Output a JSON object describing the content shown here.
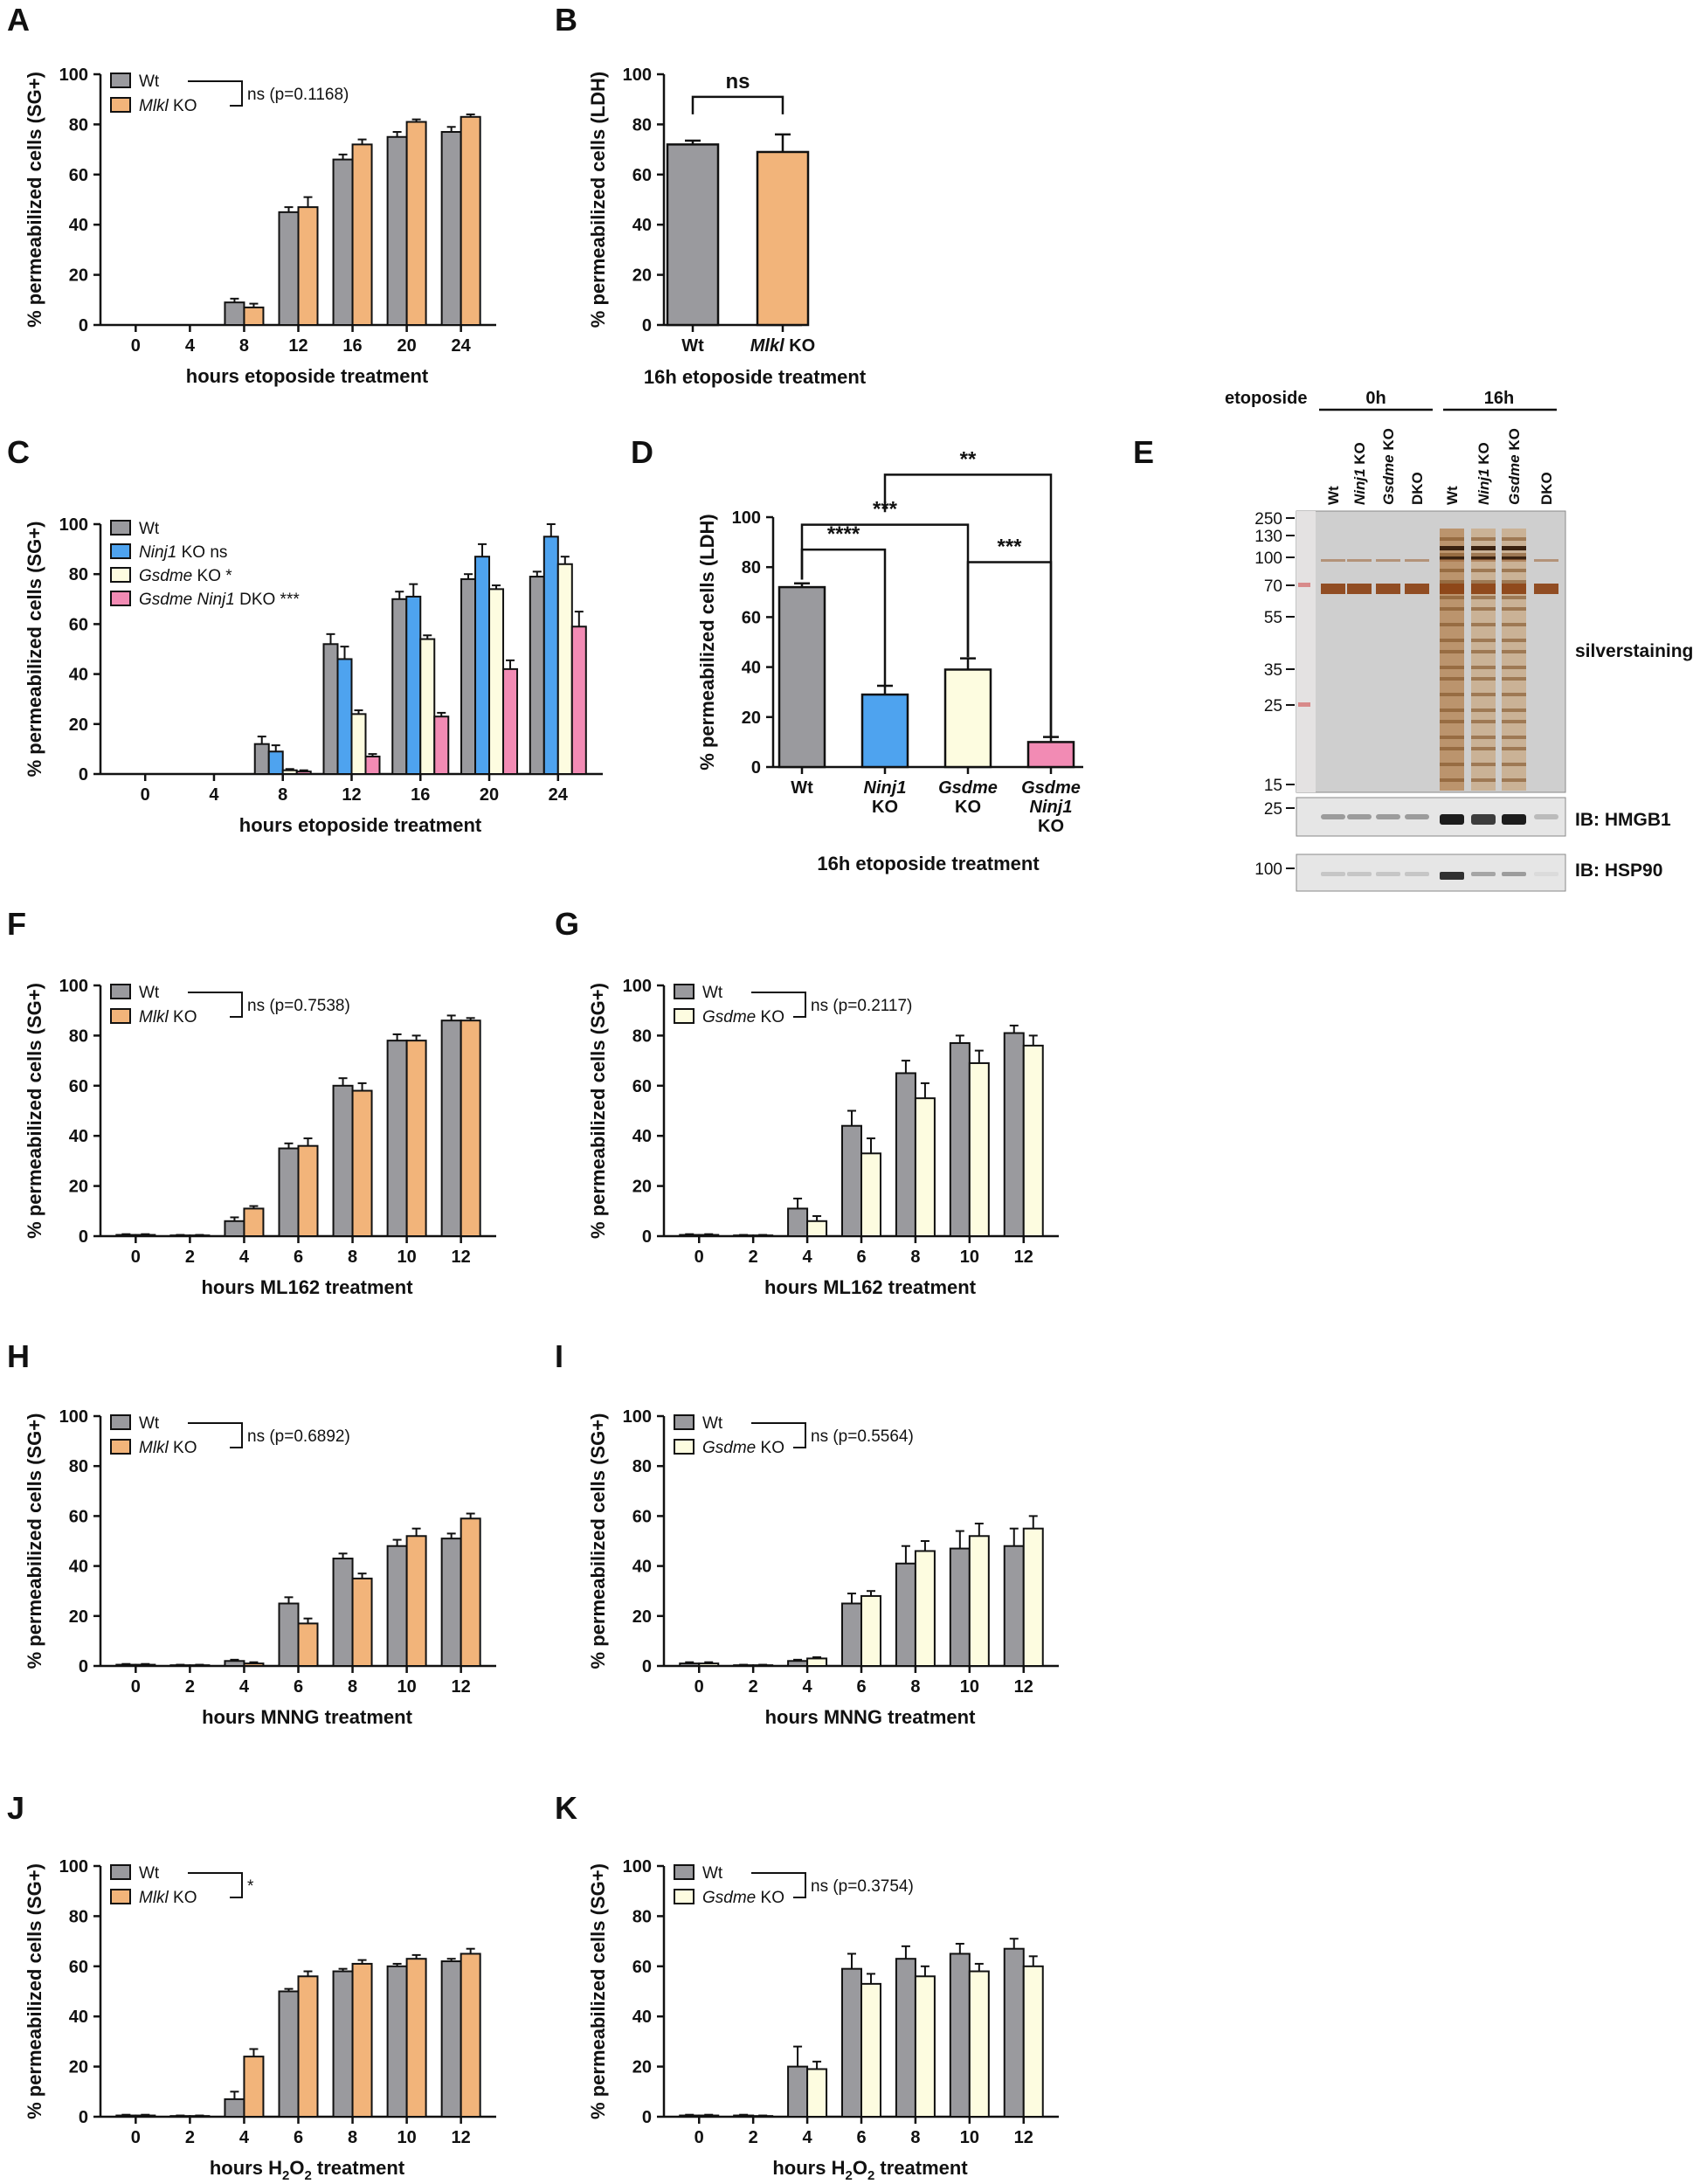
{
  "colors": {
    "wt": "#9a9a9e",
    "mlkl": "#f2b47a",
    "ninj1": "#4ea3ef",
    "gsdme": "#fdfce0",
    "dko": "#f28bb4"
  },
  "chart_data": [
    {
      "panel": "A",
      "type": "bar",
      "ylabel": "% permeabilized cells (SG+)",
      "xlabel": "hours etoposide treatment",
      "ylim": [
        0,
        100
      ],
      "yticks": [
        0,
        20,
        40,
        60,
        80,
        100
      ],
      "categories": [
        "0",
        "4",
        "8",
        "12",
        "16",
        "20",
        "24"
      ],
      "series": [
        {
          "name": "Wt",
          "color": "wt",
          "values": [
            0,
            0,
            9,
            45,
            66,
            75,
            77
          ],
          "err": [
            0,
            0,
            1.5,
            2,
            2,
            2,
            2
          ]
        },
        {
          "name": "Mlkl KO",
          "color": "mlkl",
          "values": [
            0,
            0,
            7,
            47,
            72,
            81,
            83
          ],
          "err": [
            0,
            0,
            1.5,
            4,
            2,
            1,
            1
          ]
        }
      ],
      "legend_bracket_text": "ns (p=0.1168)"
    },
    {
      "panel": "B",
      "type": "bar",
      "ylabel": "% permeabilized cells (LDH)",
      "xlabel": "16h etoposide treatment",
      "ylim": [
        0,
        100
      ],
      "yticks": [
        0,
        20,
        40,
        60,
        80,
        100
      ],
      "categories": [
        "Wt",
        "Mlkl KO"
      ],
      "series": [
        {
          "values": [
            72,
            69
          ],
          "err": [
            1.5,
            7
          ],
          "colors": [
            "wt",
            "mlkl"
          ]
        }
      ],
      "significance": [
        {
          "from": 0,
          "to": 1,
          "label": "ns"
        }
      ]
    },
    {
      "panel": "C",
      "type": "bar",
      "ylabel": "% permeabilized cells (SG+)",
      "xlabel": "hours etoposide treatment",
      "ylim": [
        0,
        100
      ],
      "yticks": [
        0,
        20,
        40,
        60,
        80,
        100
      ],
      "categories": [
        "0",
        "4",
        "8",
        "12",
        "16",
        "20",
        "24"
      ],
      "series": [
        {
          "name": "Wt",
          "color": "wt",
          "values": [
            0,
            0,
            12,
            52,
            70,
            78,
            79
          ],
          "err": [
            0,
            0,
            3,
            4,
            3,
            2,
            2
          ]
        },
        {
          "name": "Ninj1 KO",
          "suffix": "ns",
          "color": "ninj1",
          "values": [
            0,
            0,
            9,
            46,
            71,
            87,
            95
          ],
          "err": [
            0,
            0,
            2.5,
            5,
            5,
            5,
            5
          ]
        },
        {
          "name": "Gsdme KO",
          "suffix": "*",
          "color": "gsdme",
          "values": [
            0,
            0,
            1.5,
            24,
            54,
            74,
            84
          ],
          "err": [
            0,
            0,
            0.5,
            1.5,
            1.5,
            1.5,
            3
          ]
        },
        {
          "name": "Gsdme Ninj1 DKO",
          "suffix": "***",
          "color": "dko",
          "values": [
            0,
            0,
            1,
            7,
            23,
            42,
            59
          ],
          "err": [
            0,
            0,
            0.5,
            1,
            1.5,
            3.5,
            6
          ]
        }
      ]
    },
    {
      "panel": "D",
      "type": "bar",
      "ylabel": "% permeabilized cells (LDH)",
      "xlabel": "16h etoposide treatment",
      "ylim": [
        0,
        100
      ],
      "yticks": [
        0,
        20,
        40,
        60,
        80,
        100
      ],
      "categories": [
        "Wt",
        "Ninj1 KO",
        "Gsdme KO",
        "Gsdme Ninj1 KO"
      ],
      "series": [
        {
          "values": [
            72,
            29,
            39,
            10
          ],
          "err": [
            1.5,
            3.5,
            4.5,
            2
          ],
          "colors": [
            "wt",
            "ninj1",
            "gsdme",
            "dko"
          ]
        }
      ],
      "significance": [
        {
          "from": 0,
          "to": 1,
          "label": "****"
        },
        {
          "from": 0,
          "to": 2,
          "label": "***"
        },
        {
          "from": 2,
          "to": 3,
          "label": "***"
        },
        {
          "from": 1,
          "to": 3,
          "label": "**"
        }
      ]
    },
    {
      "panel": "F",
      "type": "bar",
      "ylabel": "% permeabilized cells (SG+)",
      "xlabel": "hours ML162 treatment",
      "ylim": [
        0,
        100
      ],
      "yticks": [
        0,
        20,
        40,
        60,
        80,
        100
      ],
      "categories": [
        "0",
        "2",
        "4",
        "6",
        "8",
        "10",
        "12"
      ],
      "series": [
        {
          "name": "Wt",
          "color": "wt",
          "values": [
            0.5,
            0.3,
            6,
            35,
            60,
            78,
            86
          ],
          "err": [
            0.3,
            0.2,
            1.5,
            2,
            3,
            2.5,
            2
          ]
        },
        {
          "name": "Mlkl KO",
          "color": "mlkl",
          "values": [
            0.5,
            0.3,
            11,
            36,
            58,
            78,
            86
          ],
          "err": [
            0.3,
            0.2,
            1,
            3,
            3,
            2,
            1
          ]
        }
      ],
      "legend_bracket_text": "ns (p=0.7538)"
    },
    {
      "panel": "G",
      "type": "bar",
      "ylabel": "% permeabilized cells (SG+)",
      "xlabel": "hours ML162 treatment",
      "ylim": [
        0,
        100
      ],
      "yticks": [
        0,
        20,
        40,
        60,
        80,
        100
      ],
      "categories": [
        "0",
        "2",
        "4",
        "6",
        "8",
        "10",
        "12"
      ],
      "series": [
        {
          "name": "Wt",
          "color": "wt",
          "values": [
            0.5,
            0.3,
            11,
            44,
            65,
            77,
            81
          ],
          "err": [
            0.3,
            0.2,
            4,
            6,
            5,
            3,
            3
          ]
        },
        {
          "name": "Gsdme KO",
          "color": "gsdme",
          "values": [
            0.5,
            0.3,
            6,
            33,
            55,
            69,
            76
          ],
          "err": [
            0.3,
            0.2,
            2,
            6,
            6,
            5,
            4
          ]
        }
      ],
      "legend_bracket_text": "ns (p=0.2117)"
    },
    {
      "panel": "H",
      "type": "bar",
      "ylabel": "% permeabilized cells (SG+)",
      "xlabel": "hours MNNG treatment",
      "ylim": [
        0,
        100
      ],
      "yticks": [
        0,
        20,
        40,
        60,
        80,
        100
      ],
      "categories": [
        "0",
        "2",
        "4",
        "6",
        "8",
        "10",
        "12"
      ],
      "series": [
        {
          "name": "Wt",
          "color": "wt",
          "values": [
            0.5,
            0.3,
            2,
            25,
            43,
            48,
            51
          ],
          "err": [
            0.3,
            0.2,
            0.5,
            2.5,
            2,
            2.5,
            2
          ]
        },
        {
          "name": "Mlkl KO",
          "color": "mlkl",
          "values": [
            0.5,
            0.3,
            1,
            17,
            35,
            52,
            59
          ],
          "err": [
            0.3,
            0.2,
            0.5,
            2,
            2,
            3,
            2
          ]
        }
      ],
      "legend_bracket_text": "ns (p=0.6892)"
    },
    {
      "panel": "I",
      "type": "bar",
      "ylabel": "% permeabilized cells (SG+)",
      "xlabel": "hours MNNG treatment",
      "ylim": [
        0,
        100
      ],
      "yticks": [
        0,
        20,
        40,
        60,
        80,
        100
      ],
      "categories": [
        "0",
        "2",
        "4",
        "6",
        "8",
        "10",
        "12"
      ],
      "series": [
        {
          "name": "Wt",
          "color": "wt",
          "values": [
            1,
            0.3,
            2,
            25,
            41,
            47,
            48
          ],
          "err": [
            0.5,
            0.2,
            0.5,
            4,
            7,
            7,
            7
          ]
        },
        {
          "name": "Gsdme KO",
          "color": "gsdme",
          "values": [
            1,
            0.3,
            3,
            28,
            46,
            52,
            55
          ],
          "err": [
            0.5,
            0.2,
            0.5,
            2,
            4,
            5,
            5
          ]
        }
      ],
      "legend_bracket_text": "ns (p=0.5564)"
    },
    {
      "panel": "J",
      "type": "bar",
      "ylabel": "% permeabilized cells (SG+)",
      "xlabel": "hours H2O2 treatment",
      "ylim": [
        0,
        100
      ],
      "yticks": [
        0,
        20,
        40,
        60,
        80,
        100
      ],
      "categories": [
        "0",
        "2",
        "4",
        "6",
        "8",
        "10",
        "12"
      ],
      "series": [
        {
          "name": "Wt",
          "color": "wt",
          "values": [
            0.5,
            0.3,
            7,
            50,
            58,
            60,
            62
          ],
          "err": [
            0.3,
            0.2,
            3,
            1,
            1,
            1,
            1
          ]
        },
        {
          "name": "Mlkl KO",
          "color": "mlkl",
          "values": [
            0.5,
            0.3,
            24,
            56,
            61,
            63,
            65
          ],
          "err": [
            0.3,
            0.2,
            3,
            2,
            1.5,
            1.5,
            2
          ]
        }
      ],
      "legend_bracket_text": "*"
    },
    {
      "panel": "K",
      "type": "bar",
      "ylabel": "% permeabilized cells (SG+)",
      "xlabel": "hours H2O2 treatment",
      "ylim": [
        0,
        100
      ],
      "yticks": [
        0,
        20,
        40,
        60,
        80,
        100
      ],
      "categories": [
        "0",
        "2",
        "4",
        "6",
        "8",
        "10",
        "12"
      ],
      "series": [
        {
          "name": "Wt",
          "color": "wt",
          "values": [
            0.5,
            0.5,
            20,
            59,
            63,
            65,
            67
          ],
          "err": [
            0.3,
            0.3,
            8,
            6,
            5,
            4,
            4
          ]
        },
        {
          "name": "Gsdme KO",
          "color": "gsdme",
          "values": [
            0.5,
            0.3,
            19,
            53,
            56,
            58,
            60
          ],
          "err": [
            0.3,
            0.2,
            3,
            4,
            4,
            3,
            4
          ]
        }
      ],
      "legend_bracket_text": "ns (p=0.3754)"
    }
  ],
  "blot": {
    "panel": "E",
    "treatment_label": "etoposide",
    "groups": [
      "0h",
      "16h"
    ],
    "lanes": [
      "Wt",
      "Ninj1 KO",
      "Gsdme KO",
      "DKO",
      "Wt",
      "Ninj1 KO",
      "Gsdme KO",
      "DKO"
    ],
    "marker_kda": [
      "250",
      "130",
      "100",
      "70",
      "55",
      "35",
      "25",
      "15"
    ],
    "hmgb1_marker": "25",
    "hsp90_marker": "100",
    "label_silver": "silverstaining",
    "label_hmgb1": "IB: HMGB1",
    "label_hsp90": "IB: HSP90"
  }
}
